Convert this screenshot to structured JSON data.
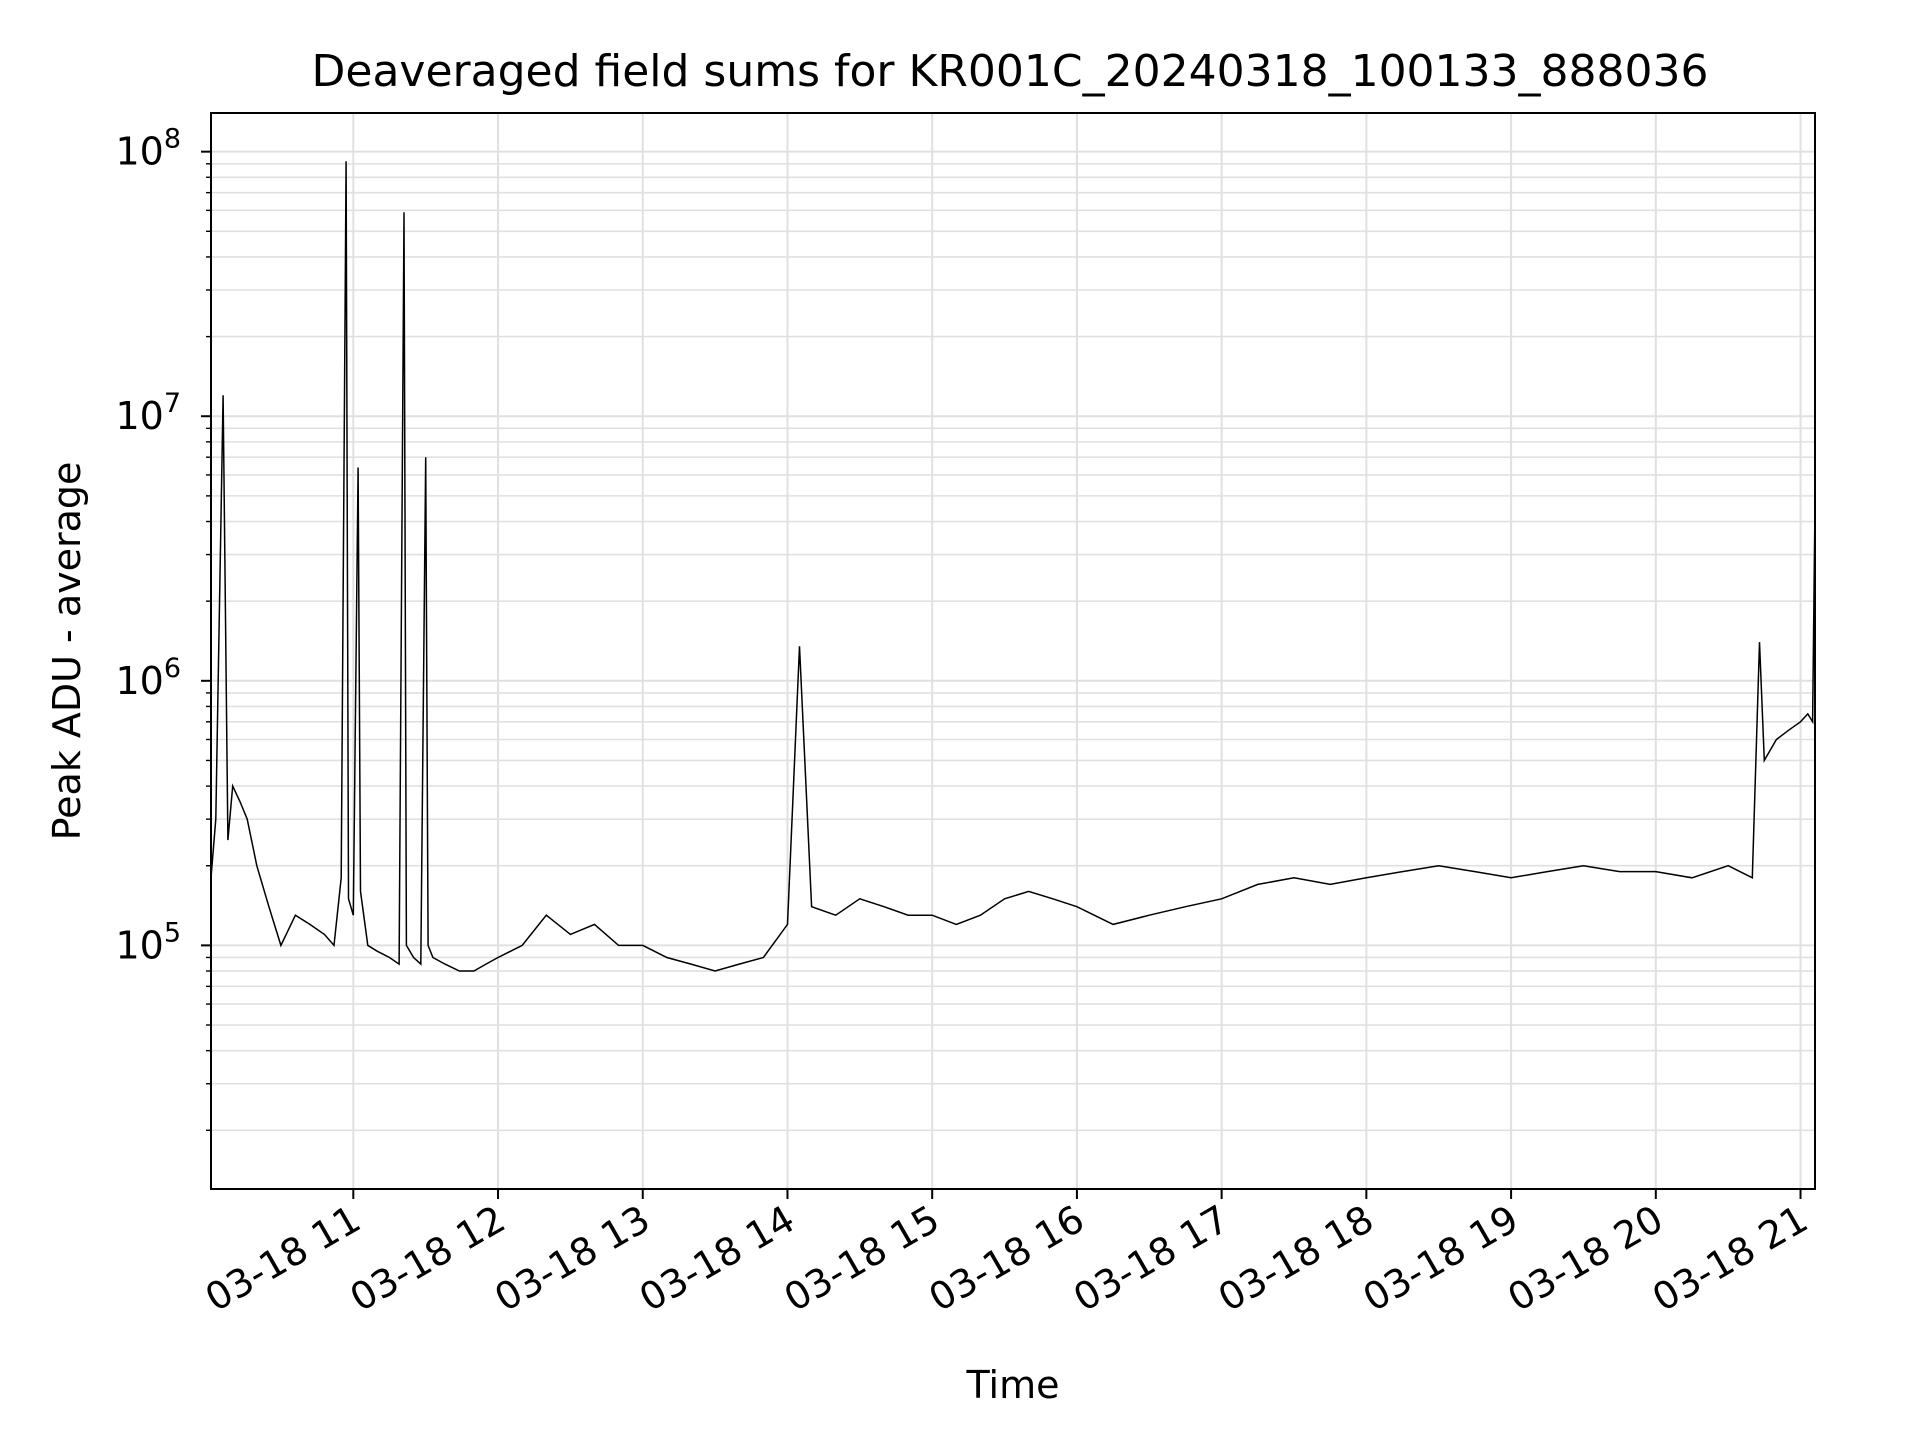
{
  "chart_data": {
    "type": "line",
    "title": "Deaveraged field sums for KR001C_20240318_100133_888036",
    "xlabel": "Time",
    "ylabel": "Peak ADU - average",
    "x_range": [
      "2024-03-18 10:01",
      "2024-03-18 21:06"
    ],
    "ylim": [
      12000,
      140000000
    ],
    "yscale": "log",
    "grid": true,
    "grid_color": "#e0e0e0",
    "line_color": "#000000",
    "x_ticks": [
      {
        "value": "2024-03-18 11:00",
        "label": "03-18 11"
      },
      {
        "value": "2024-03-18 12:00",
        "label": "03-18 12"
      },
      {
        "value": "2024-03-18 13:00",
        "label": "03-18 13"
      },
      {
        "value": "2024-03-18 14:00",
        "label": "03-18 14"
      },
      {
        "value": "2024-03-18 15:00",
        "label": "03-18 15"
      },
      {
        "value": "2024-03-18 16:00",
        "label": "03-18 16"
      },
      {
        "value": "2024-03-18 17:00",
        "label": "03-18 17"
      },
      {
        "value": "2024-03-18 18:00",
        "label": "03-18 18"
      },
      {
        "value": "2024-03-18 19:00",
        "label": "03-18 19"
      },
      {
        "value": "2024-03-18 20:00",
        "label": "03-18 20"
      },
      {
        "value": "2024-03-18 21:00",
        "label": "03-18 21"
      }
    ],
    "y_ticks": [
      {
        "value": 100000,
        "base": "10",
        "exp": "5"
      },
      {
        "value": 1000000,
        "base": "10",
        "exp": "6"
      },
      {
        "value": 10000000,
        "base": "10",
        "exp": "7"
      },
      {
        "value": 100000000,
        "base": "10",
        "exp": "8"
      }
    ],
    "series": [
      {
        "x": [
          "2024-03-18 10:01",
          "2024-03-18 10:03",
          "2024-03-18 10:06",
          "2024-03-18 10:08",
          "2024-03-18 10:10",
          "2024-03-18 10:13",
          "2024-03-18 10:16",
          "2024-03-18 10:20",
          "2024-03-18 10:25",
          "2024-03-18 10:30",
          "2024-03-18 10:36",
          "2024-03-18 10:42",
          "2024-03-18 10:48",
          "2024-03-18 10:52",
          "2024-03-18 10:55",
          "2024-03-18 10:57",
          "2024-03-18 10:58",
          "2024-03-18 11:00",
          "2024-03-18 11:02",
          "2024-03-18 11:03",
          "2024-03-18 11:06",
          "2024-03-18 11:10",
          "2024-03-18 11:15",
          "2024-03-18 11:19",
          "2024-03-18 11:21",
          "2024-03-18 11:22",
          "2024-03-18 11:25",
          "2024-03-18 11:28",
          "2024-03-18 11:30",
          "2024-03-18 11:31",
          "2024-03-18 11:33",
          "2024-03-18 11:38",
          "2024-03-18 11:44",
          "2024-03-18 11:50",
          "2024-03-18 11:55",
          "2024-03-18 12:00",
          "2024-03-18 12:10",
          "2024-03-18 12:20",
          "2024-03-18 12:30",
          "2024-03-18 12:40",
          "2024-03-18 12:50",
          "2024-03-18 13:00",
          "2024-03-18 13:10",
          "2024-03-18 13:20",
          "2024-03-18 13:30",
          "2024-03-18 13:40",
          "2024-03-18 13:50",
          "2024-03-18 14:00",
          "2024-03-18 14:05",
          "2024-03-18 14:10",
          "2024-03-18 14:20",
          "2024-03-18 14:30",
          "2024-03-18 14:40",
          "2024-03-18 14:50",
          "2024-03-18 15:00",
          "2024-03-18 15:10",
          "2024-03-18 15:20",
          "2024-03-18 15:30",
          "2024-03-18 15:40",
          "2024-03-18 15:50",
          "2024-03-18 16:00",
          "2024-03-18 16:15",
          "2024-03-18 16:30",
          "2024-03-18 16:45",
          "2024-03-18 17:00",
          "2024-03-18 17:15",
          "2024-03-18 17:30",
          "2024-03-18 17:45",
          "2024-03-18 18:00",
          "2024-03-18 18:15",
          "2024-03-18 18:30",
          "2024-03-18 18:45",
          "2024-03-18 19:00",
          "2024-03-18 19:15",
          "2024-03-18 19:30",
          "2024-03-18 19:45",
          "2024-03-18 20:00",
          "2024-03-18 20:15",
          "2024-03-18 20:30",
          "2024-03-18 20:40",
          "2024-03-18 20:43",
          "2024-03-18 20:45",
          "2024-03-18 20:50",
          "2024-03-18 20:55",
          "2024-03-18 21:00",
          "2024-03-18 21:03",
          "2024-03-18 21:05",
          "2024-03-18 21:06"
        ],
        "y": [
          180000,
          300000,
          12000000,
          250000,
          400000,
          350000,
          300000,
          200000,
          140000,
          100000,
          130000,
          120000,
          110000,
          100000,
          180000,
          92000000,
          150000,
          130000,
          6400000,
          160000,
          100000,
          95000,
          90000,
          85000,
          59000000,
          100000,
          90000,
          85000,
          7000000,
          100000,
          90000,
          85000,
          80000,
          80000,
          85000,
          90000,
          100000,
          130000,
          110000,
          120000,
          100000,
          100000,
          90000,
          85000,
          80000,
          85000,
          90000,
          120000,
          1350000,
          140000,
          130000,
          150000,
          140000,
          130000,
          130000,
          120000,
          130000,
          150000,
          160000,
          150000,
          140000,
          120000,
          130000,
          140000,
          150000,
          170000,
          180000,
          170000,
          180000,
          190000,
          200000,
          190000,
          180000,
          190000,
          200000,
          190000,
          190000,
          180000,
          200000,
          180000,
          1400000,
          500000,
          600000,
          650000,
          700000,
          750000,
          700000,
          4700000
        ]
      }
    ]
  }
}
